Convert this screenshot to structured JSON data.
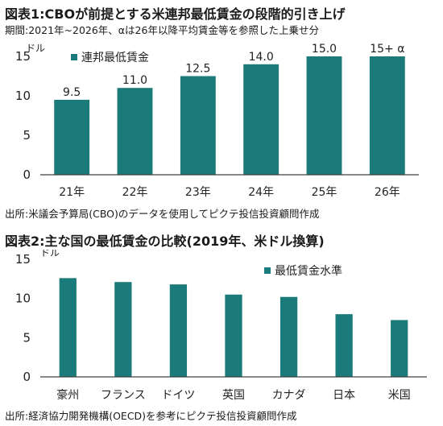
{
  "chart1": {
    "title": "図表1:CBOが前提とする米連邦最低賃金の段階的引き上げ",
    "subtitle": "期間:2021年~2026年、αは26年以降平均賃金等を参照した上乗せ分",
    "source": "出所:米議会予算局(CBO)のデータを使用してピクテ投信投資顧問作成"
  },
  "chart2": {
    "title": "図表2:主な国の最低賃金の比較(2019年、米ドル換算)",
    "source": "出所:経済協力開発機構(OECD)を参考にピクテ投信投資顧問作成"
  },
  "colors": {
    "bar": "#1b7a7a",
    "axis": "#404040"
  },
  "chart_data": [
    {
      "type": "bar",
      "title": "図表1:CBOが前提とする米連邦最低賃金の段階的引き上げ",
      "categories": [
        "21年",
        "22年",
        "23年",
        "24年",
        "25年",
        "26年"
      ],
      "series": [
        {
          "name": "連邦最低賃金",
          "values": [
            9.5,
            11.0,
            12.5,
            14.0,
            15.0,
            15.0
          ]
        }
      ],
      "data_labels": [
        "9.5",
        "11.0",
        "12.5",
        "14.0",
        "15.0",
        "15+ α"
      ],
      "ylabel": "ドル",
      "ylim": [
        0,
        15
      ],
      "yticks": [
        0,
        5,
        10,
        15
      ],
      "legend": "top-left"
    },
    {
      "type": "bar",
      "title": "図表2:主な国の最低賃金の比較(2019年、米ドル換算)",
      "categories": [
        "豪州",
        "フランス",
        "ドイツ",
        "英国",
        "カナダ",
        "日本",
        "米国"
      ],
      "series": [
        {
          "name": "最低賃金水準",
          "values": [
            12.6,
            12.1,
            11.8,
            10.5,
            10.2,
            8.0,
            7.25
          ]
        }
      ],
      "ylabel": "ドル",
      "ylim": [
        0,
        15
      ],
      "yticks": [
        0,
        5,
        10,
        15
      ],
      "legend": "top-center"
    }
  ]
}
